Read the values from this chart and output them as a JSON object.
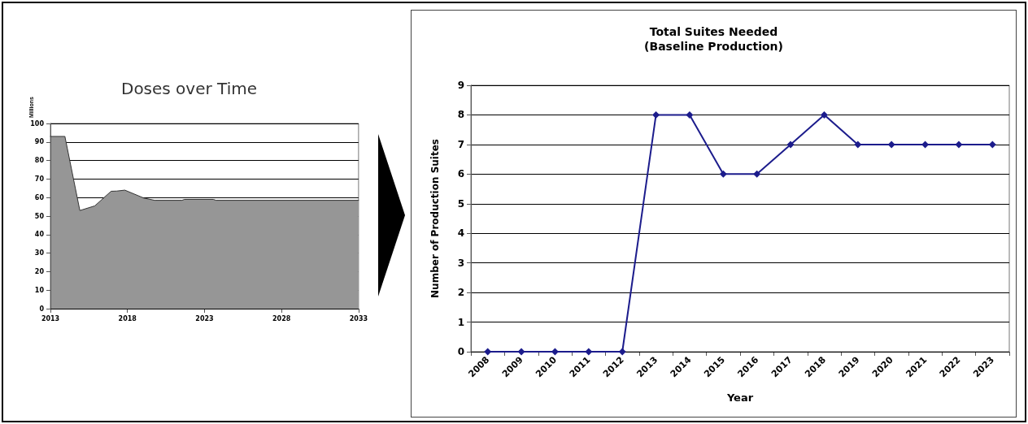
{
  "chart_data": [
    {
      "type": "area",
      "title": "Doses over Time",
      "ylabel": "Millions",
      "x": [
        2013,
        2013.94,
        2014.91,
        2015.88,
        2016.94,
        2017.3,
        2017.83,
        2019.07,
        2019.77,
        2021.54,
        2021.7,
        2023.57,
        2023.75,
        2033
      ],
      "series": [
        {
          "color": "#969696",
          "values": [
            93,
            93,
            53,
            55.5,
            63.4,
            63.5,
            64,
            59.7,
            58.5,
            58.5,
            59,
            59,
            58.5,
            58.5
          ]
        }
      ],
      "xlim": [
        2013,
        2033
      ],
      "xticks": [
        2013,
        2018,
        2023,
        2028,
        2033
      ],
      "ylim": [
        0,
        100
      ],
      "yticks": [
        0,
        10,
        20,
        30,
        40,
        50,
        60,
        70,
        80,
        90,
        100
      ],
      "grid": "y"
    },
    {
      "type": "line",
      "title": "Total Suites Needed",
      "subtitle": "(Baseline Production)",
      "xlabel": "Year",
      "ylabel": "Number of Production Suites",
      "categories": [
        "2008",
        "2009",
        "2010",
        "2011",
        "2012",
        "2013",
        "2014",
        "2015",
        "2016",
        "2017",
        "2018",
        "2019",
        "2020",
        "2021",
        "2022",
        "2023"
      ],
      "series": [
        {
          "color": "#1c1c8c",
          "values": [
            0,
            0,
            0,
            0,
            0,
            8,
            8,
            6,
            6,
            7,
            8,
            7,
            7,
            7,
            7,
            7
          ]
        }
      ],
      "ylim": [
        0,
        9
      ],
      "yticks": [
        0,
        1,
        2,
        3,
        4,
        5,
        6,
        7,
        8,
        9
      ],
      "grid": "y",
      "marker": "diamond",
      "line_style": "solid"
    }
  ]
}
